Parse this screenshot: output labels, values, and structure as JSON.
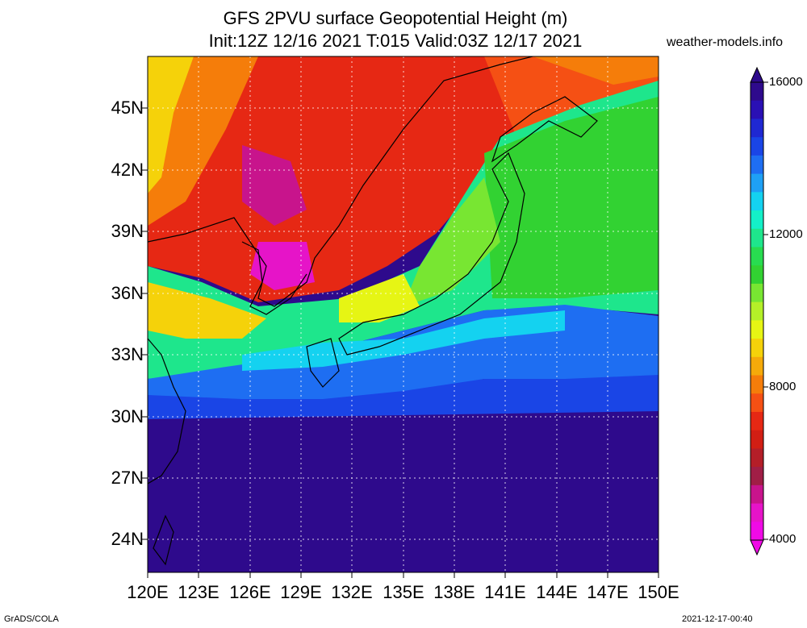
{
  "title_line1": "GFS 2PVU surface Geopotential Height (m)",
  "title_line2": "Init:12Z 12/16 2021 T:015 Valid:03Z 12/17 2021",
  "site": "weather-models.info",
  "lat_labels": [
    "45N",
    "42N",
    "39N",
    "36N",
    "33N",
    "30N",
    "27N",
    "24N"
  ],
  "lon_labels": [
    "120E",
    "123E",
    "126E",
    "129E",
    "132E",
    "135E",
    "138E",
    "141E",
    "144E",
    "147E",
    "150E"
  ],
  "colorbar_labels": [
    "16000",
    "12000",
    "8000",
    "4000"
  ],
  "colorbar_colors": [
    "#2e0a8c",
    "#2a10b4",
    "#1f28d2",
    "#1a45e6",
    "#1e6ef2",
    "#1ea0f5",
    "#14d2f0",
    "#14f0c8",
    "#1ee68c",
    "#28dc50",
    "#32d232",
    "#78e632",
    "#b4f028",
    "#e6f514",
    "#f5d20a",
    "#f5aa0a",
    "#f57d0a",
    "#f55014",
    "#e62814",
    "#d21e14",
    "#b41e28",
    "#a01e46",
    "#c8148c",
    "#e614c8",
    "#f00ae6"
  ],
  "footer_left": "GrADS/COLA",
  "footer_right": "2021-12-17-00:40"
}
